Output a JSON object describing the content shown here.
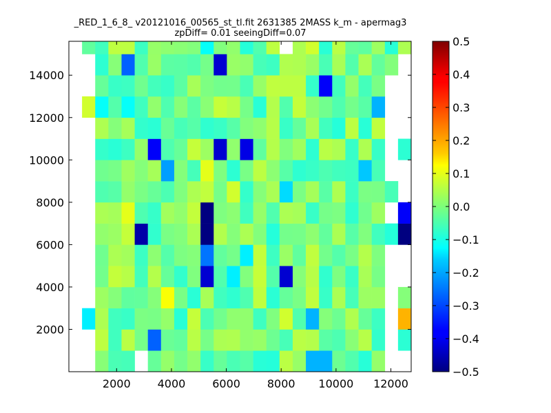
{
  "chart_data": {
    "type": "heatmap",
    "title": "_RED_1_6_8_ v20121016_00565_st_tl.fit 2631385 2MASS k_m - apermag3",
    "subtitle": "zpDiff= 0.01 seeingDiff=0.07",
    "xlabel": "",
    "ylabel": "",
    "xlim": [
      260,
      12740
    ],
    "ylim": [
      0,
      15600
    ],
    "xticks": [
      "2000",
      "4000",
      "6000",
      "8000",
      "10000",
      "12000"
    ],
    "xtick_values": [
      2000,
      4000,
      6000,
      8000,
      10000,
      12000
    ],
    "yticks": [
      "2000",
      "4000",
      "6000",
      "8000",
      "10000",
      "12000",
      "14000"
    ],
    "ytick_values": [
      2000,
      4000,
      6000,
      8000,
      10000,
      12000,
      14000
    ],
    "colorbar": {
      "min": -0.5,
      "max": 0.5,
      "ticks": [
        "0.5",
        "0.4",
        "0.3",
        "0.2",
        "0.1",
        "0.0",
        "−0.1",
        "−0.2",
        "−0.3",
        "−0.4",
        "−0.5"
      ],
      "tick_values": [
        0.5,
        0.4,
        0.3,
        0.2,
        0.1,
        0.0,
        -0.1,
        -0.2,
        -0.3,
        -0.4,
        -0.5
      ],
      "colormap": "jet"
    },
    "grid": false,
    "bins": {
      "x0": 260,
      "dx": 480,
      "ncols": 26,
      "y0": 0,
      "dy": 1000,
      "nrows": 31
    },
    "anomalies": [
      {
        "x": 2500,
        "y": 14000,
        "value": -0.28
      },
      {
        "x": 5900,
        "y": 14000,
        "value": -0.42
      },
      {
        "x": 9800,
        "y": 13600,
        "value": -0.38
      },
      {
        "x": 11400,
        "y": 12300,
        "value": -0.2
      },
      {
        "x": 6600,
        "y": 10900,
        "value": -0.48
      },
      {
        "x": 3500,
        "y": 10600,
        "value": -0.38
      },
      {
        "x": 6600,
        "y": 10600,
        "value": -0.4
      },
      {
        "x": 5900,
        "y": 10000,
        "value": -0.42
      },
      {
        "x": 3900,
        "y": 9600,
        "value": -0.22
      },
      {
        "x": 10900,
        "y": 9100,
        "value": -0.18
      },
      {
        "x": 2400,
        "y": 7600,
        "value": -0.28
      },
      {
        "x": 12500,
        "y": 7600,
        "value": -0.38
      },
      {
        "x": 5100,
        "y": 7100,
        "value": -0.5
      },
      {
        "x": 5500,
        "y": 6600,
        "value": -0.5
      },
      {
        "x": 2800,
        "y": 6100,
        "value": -0.46
      },
      {
        "x": 12500,
        "y": 6100,
        "value": -0.5
      },
      {
        "x": 5100,
        "y": 5600,
        "value": -0.26
      },
      {
        "x": 5100,
        "y": 4600,
        "value": -0.42
      },
      {
        "x": 8200,
        "y": 4600,
        "value": -0.42
      },
      {
        "x": 3400,
        "y": 1200,
        "value": -0.28
      },
      {
        "x": 12500,
        "y": 2200,
        "value": 0.2
      },
      {
        "x": 4000,
        "y": 3700,
        "value": 0.12
      },
      {
        "x": 5100,
        "y": 9100,
        "value": 0.1
      },
      {
        "x": 2400,
        "y": 7100,
        "value": 0.1
      },
      {
        "x": 6300,
        "y": 8600,
        "value": 0.08
      },
      {
        "x": 8200,
        "y": 2200,
        "value": 0.08
      },
      {
        "x": 9300,
        "y": 15000,
        "value": 0.08
      },
      {
        "x": 1100,
        "y": 12300,
        "value": 0.08
      },
      {
        "x": 9300,
        "y": 2200,
        "value": -0.2
      },
      {
        "x": 9800,
        "y": 700,
        "value": -0.2
      },
      {
        "x": 9300,
        "y": 200,
        "value": -0.2
      },
      {
        "x": 8200,
        "y": 8600,
        "value": -0.16
      },
      {
        "x": 6600,
        "y": 5100,
        "value": -0.14
      },
      {
        "x": 6300,
        "y": 4600,
        "value": -0.14
      },
      {
        "x": 1100,
        "y": 2200,
        "value": -0.14
      },
      {
        "x": 5100,
        "y": 15000,
        "value": -0.12
      },
      {
        "x": 1400,
        "y": 12900,
        "value": -0.12
      },
      {
        "x": 2400,
        "y": 12900,
        "value": -0.12
      }
    ],
    "blank_cells": [
      {
        "x": 3000,
        "y": 700
      },
      {
        "x": 8400,
        "y": 15400
      }
    ]
  }
}
